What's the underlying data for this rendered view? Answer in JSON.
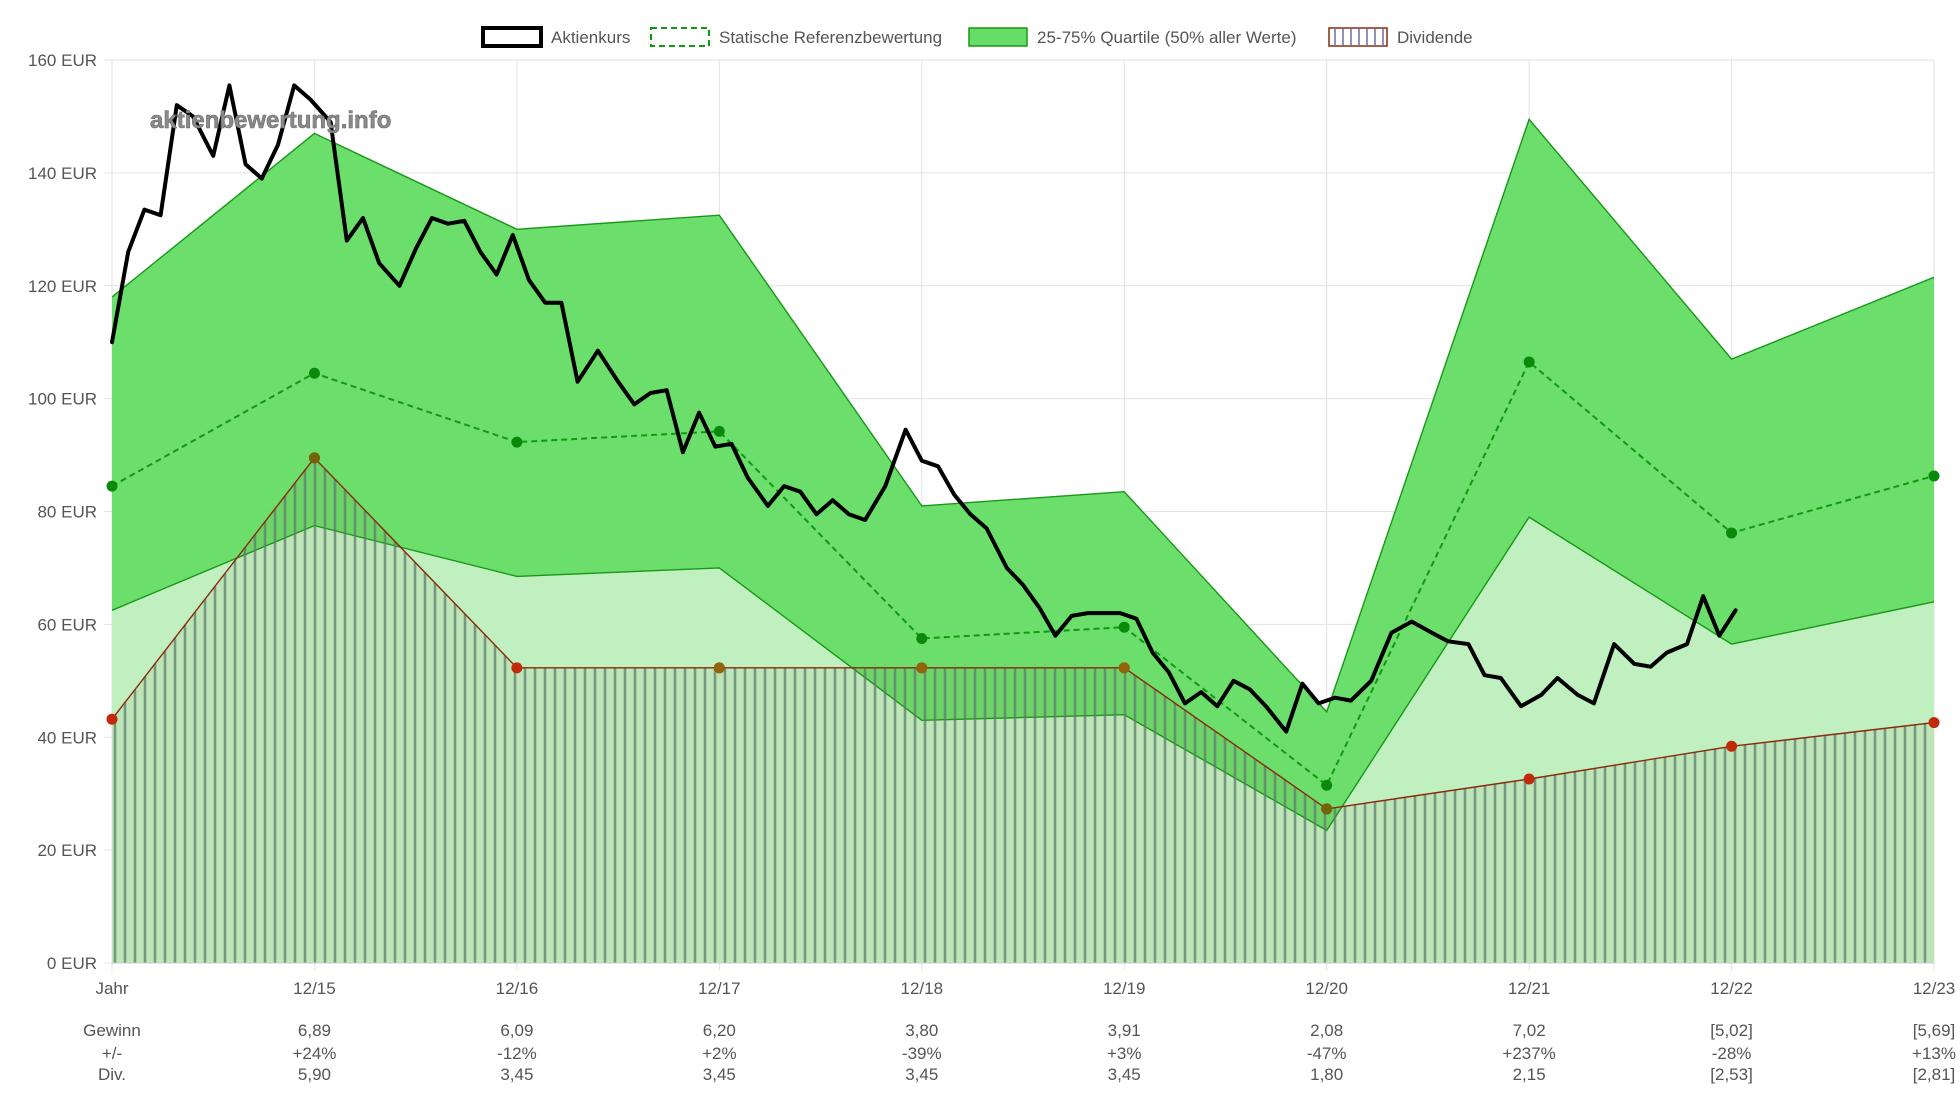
{
  "chart_data": {
    "type": "line",
    "watermark": "aktienbewertung.info",
    "legend": [
      {
        "name": "Aktienkurs",
        "style": "line"
      },
      {
        "name": "Statische Referenzbewertung",
        "style": "dashed"
      },
      {
        "name": "25-75% Quartile (50% aller Werte)",
        "style": "area"
      },
      {
        "name": "Dividende",
        "style": "hatched"
      }
    ],
    "y_axis": {
      "min": 0,
      "max": 160,
      "step": 20,
      "unit": " EUR"
    },
    "x_ticks": [
      "Jahr",
      "12/15",
      "12/16",
      "12/17",
      "12/18",
      "12/19",
      "12/20",
      "12/21",
      "12/22",
      "12/23"
    ],
    "x_range": [
      0,
      9
    ],
    "series": {
      "aktienkurs": {
        "name": "Aktienkurs",
        "points": [
          [
            0.0,
            110
          ],
          [
            0.08,
            126
          ],
          [
            0.16,
            133.5
          ],
          [
            0.24,
            132.5
          ],
          [
            0.32,
            152
          ],
          [
            0.4,
            150
          ],
          [
            0.5,
            143
          ],
          [
            0.58,
            155.5
          ],
          [
            0.66,
            141.5
          ],
          [
            0.74,
            139
          ],
          [
            0.82,
            145
          ],
          [
            0.9,
            155.5
          ],
          [
            0.98,
            153
          ],
          [
            1.08,
            149
          ],
          [
            1.16,
            128
          ],
          [
            1.24,
            132
          ],
          [
            1.32,
            124
          ],
          [
            1.42,
            120
          ],
          [
            1.5,
            126.5
          ],
          [
            1.58,
            132
          ],
          [
            1.66,
            131
          ],
          [
            1.74,
            131.5
          ],
          [
            1.82,
            126
          ],
          [
            1.9,
            122
          ],
          [
            1.98,
            129
          ],
          [
            2.06,
            121
          ],
          [
            2.14,
            117
          ],
          [
            2.22,
            117
          ],
          [
            2.3,
            103
          ],
          [
            2.4,
            108.5
          ],
          [
            2.5,
            103
          ],
          [
            2.58,
            99
          ],
          [
            2.66,
            101
          ],
          [
            2.74,
            101.5
          ],
          [
            2.82,
            90.5
          ],
          [
            2.9,
            97.5
          ],
          [
            2.98,
            91.5
          ],
          [
            3.06,
            92
          ],
          [
            3.14,
            86
          ],
          [
            3.24,
            81
          ],
          [
            3.32,
            84.5
          ],
          [
            3.4,
            83.5
          ],
          [
            3.48,
            79.5
          ],
          [
            3.56,
            82
          ],
          [
            3.64,
            79.5
          ],
          [
            3.72,
            78.5
          ],
          [
            3.82,
            84.5
          ],
          [
            3.92,
            94.5
          ],
          [
            4.0,
            89
          ],
          [
            4.08,
            88
          ],
          [
            4.16,
            83
          ],
          [
            4.24,
            79.5
          ],
          [
            4.32,
            77
          ],
          [
            4.42,
            70
          ],
          [
            4.5,
            67
          ],
          [
            4.58,
            63
          ],
          [
            4.66,
            58
          ],
          [
            4.74,
            61.5
          ],
          [
            4.82,
            62
          ],
          [
            4.9,
            62
          ],
          [
            4.98,
            62
          ],
          [
            5.06,
            61
          ],
          [
            5.14,
            55
          ],
          [
            5.22,
            51.5
          ],
          [
            5.3,
            46
          ],
          [
            5.38,
            48
          ],
          [
            5.46,
            45.5
          ],
          [
            5.54,
            50
          ],
          [
            5.62,
            48.5
          ],
          [
            5.7,
            45.5
          ],
          [
            5.8,
            41
          ],
          [
            5.88,
            49.5
          ],
          [
            5.96,
            46
          ],
          [
            6.04,
            47
          ],
          [
            6.12,
            46.5
          ],
          [
            6.22,
            50
          ],
          [
            6.32,
            58.5
          ],
          [
            6.42,
            60.5
          ],
          [
            6.52,
            58.5
          ],
          [
            6.6,
            57
          ],
          [
            6.7,
            56.5
          ],
          [
            6.78,
            51
          ],
          [
            6.86,
            50.5
          ],
          [
            6.96,
            45.5
          ],
          [
            7.06,
            47.5
          ],
          [
            7.14,
            50.5
          ],
          [
            7.24,
            47.5
          ],
          [
            7.32,
            46
          ],
          [
            7.42,
            56.5
          ],
          [
            7.52,
            53
          ],
          [
            7.6,
            52.5
          ],
          [
            7.68,
            55
          ],
          [
            7.78,
            56.5
          ],
          [
            7.86,
            65
          ],
          [
            7.94,
            58
          ],
          [
            8.02,
            62.5
          ]
        ]
      },
      "referenz": {
        "name": "Statische Referenzbewertung",
        "points": [
          [
            0,
            84.5
          ],
          [
            1,
            104.5
          ],
          [
            2,
            92.3
          ],
          [
            3,
            94.2
          ],
          [
            4,
            57.5
          ],
          [
            5,
            59.5
          ],
          [
            6,
            31.5
          ],
          [
            7,
            106.5
          ],
          [
            8,
            76.2
          ],
          [
            9,
            86.3
          ]
        ]
      },
      "quartil_oben": {
        "name": "75% Quartil",
        "points": [
          [
            0,
            118
          ],
          [
            1,
            147
          ],
          [
            2,
            130
          ],
          [
            3,
            132.5
          ],
          [
            4,
            81
          ],
          [
            5,
            83.5
          ],
          [
            6,
            44.5
          ],
          [
            7,
            149.5
          ],
          [
            8,
            107
          ],
          [
            9,
            121.5
          ]
        ]
      },
      "quartil_unten": {
        "name": "25% Quartil",
        "points": [
          [
            0,
            62.5
          ],
          [
            1,
            77.5
          ],
          [
            2,
            68.5
          ],
          [
            3,
            70
          ],
          [
            4,
            43
          ],
          [
            5,
            44
          ],
          [
            6,
            23.5
          ],
          [
            7,
            79
          ],
          [
            8,
            56.5
          ],
          [
            9,
            64
          ]
        ]
      },
      "dividende": {
        "name": "Dividende",
        "points": [
          [
            0,
            43.2
          ],
          [
            1,
            89.5
          ],
          [
            2,
            52.3
          ],
          [
            3,
            52.3
          ],
          [
            4,
            52.3
          ],
          [
            5,
            52.3
          ],
          [
            6,
            27.3
          ],
          [
            7,
            32.6
          ],
          [
            8,
            38.4
          ],
          [
            9,
            42.6
          ]
        ]
      }
    },
    "table": {
      "rows": [
        {
          "label": "Gewinn",
          "values": [
            "6,89",
            "6,09",
            "6,20",
            "3,80",
            "3,91",
            "2,08",
            "7,02",
            "[5,02]",
            "[5,69]"
          ]
        },
        {
          "label": "+/-",
          "values": [
            "+24%",
            "-12%",
            "+2%",
            "-39%",
            "+3%",
            "-47%",
            "+237%",
            "-28%",
            "+13%"
          ]
        },
        {
          "label": "Div.",
          "values": [
            "5,90",
            "3,45",
            "3,45",
            "3,45",
            "3,45",
            "1,80",
            "2,15",
            "[2,53]",
            "[2,81]"
          ]
        }
      ]
    },
    "colors": {
      "aktienkurs": "#000000",
      "referenz": "#119911",
      "quartil_fill": "#66dd66",
      "quartil_light": "#c0f0c0",
      "quartil_stroke": "#189818",
      "dividende_line": "#8a2a0a",
      "dividende_marker": "#c02a0a",
      "referenz_marker": "#0a8a0a",
      "grid": "#e2e2e2",
      "axis_text": "#555555"
    }
  }
}
